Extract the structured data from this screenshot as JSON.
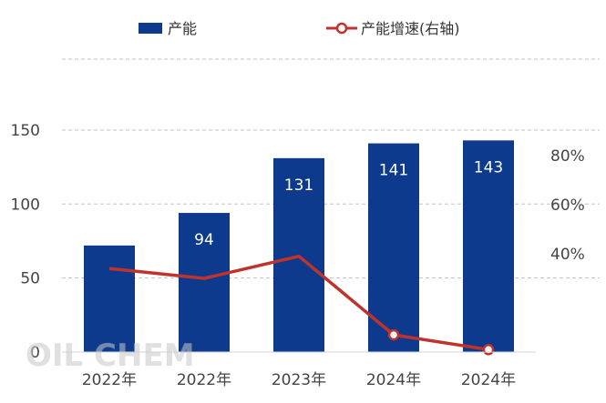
{
  "chart_data": {
    "type": "bar",
    "categories": [
      "2022年",
      "2022年",
      "2023年",
      "2024年",
      "2024年"
    ],
    "series": [
      {
        "name": "产能",
        "type": "bar",
        "axis": "left",
        "color": "#0d3a8c",
        "values": [
          72,
          94,
          131,
          141,
          143
        ],
        "data_labels": [
          "",
          "94",
          "131",
          "141",
          "143"
        ]
      },
      {
        "name": "产能增速(右轴)",
        "type": "line",
        "axis": "right",
        "color": "#c0332d",
        "values": [
          34,
          30,
          39,
          7,
          1
        ]
      }
    ],
    "y_left": {
      "ylim": [
        0,
        175
      ],
      "ticks": [
        0,
        50,
        100,
        150
      ]
    },
    "y_right": {
      "ylim": [
        0,
        95
      ],
      "ticks": [
        40,
        60,
        80
      ],
      "tick_labels": [
        "40%",
        "60%",
        "80%"
      ]
    },
    "grid": true,
    "legend_position": "top",
    "watermark": "OIL CHEM"
  }
}
